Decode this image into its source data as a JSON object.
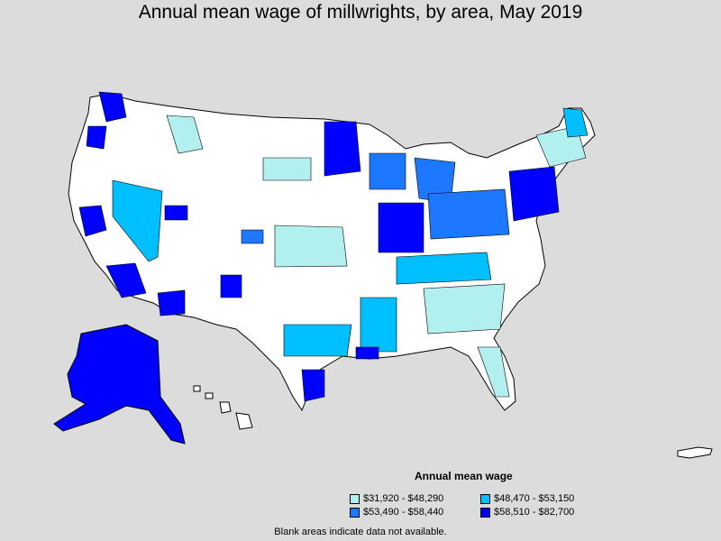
{
  "title": "Annual mean wage of millwrights, by area, May 2019",
  "legend": {
    "title": "Annual mean wage",
    "items": [
      {
        "label": "$31,920 - $48,290",
        "color": "#b2f0f0"
      },
      {
        "label": "$48,470 - $53,150",
        "color": "#00bfff"
      },
      {
        "label": "$53,490 - $58,440",
        "color": "#1e78ff"
      },
      {
        "label": "$58,510 - $82,700",
        "color": "#0000ff"
      }
    ]
  },
  "footnote": "Blank areas indicate data not available.",
  "colors": {
    "background": "#dcdcdc",
    "no_data": "#ffffff",
    "border": "#000000"
  }
}
